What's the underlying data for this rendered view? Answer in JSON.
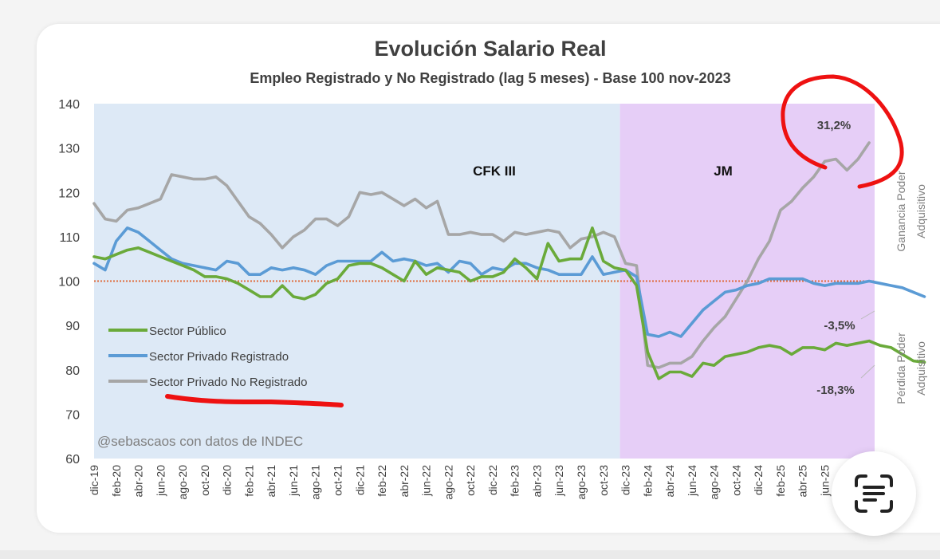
{
  "chart_data": {
    "type": "line",
    "title": "Evolución Salario Real",
    "subtitle": "Empleo Registrado y No Registrado (lag 5 meses) - Base 100 nov-2023",
    "ylim": [
      60,
      140
    ],
    "yticks": [
      60,
      70,
      80,
      90,
      100,
      110,
      120,
      130,
      140
    ],
    "reference_line": 100,
    "grid": false,
    "legend_position": "bottom-left",
    "x_tick_labels": [
      "dic-19",
      "feb-20",
      "abr-20",
      "jun-20",
      "ago-20",
      "oct-20",
      "dic-20",
      "feb-21",
      "abr-21",
      "jun-21",
      "ago-21",
      "oct-21",
      "dic-21",
      "feb-22",
      "abr-22",
      "jun-22",
      "ago-22",
      "oct-22",
      "dic-22",
      "feb-23",
      "abr-23",
      "jun-23",
      "ago-23",
      "oct-23",
      "dic-23",
      "feb-24",
      "abr-24",
      "jun-24",
      "ago-24",
      "oct-24",
      "dic-24",
      "feb-25",
      "abr-25",
      "jun-25",
      "ago-25",
      "oct-25"
    ],
    "periods": [
      {
        "label": "CFK III",
        "from": "dic-19",
        "to": "nov-23",
        "color": "#dde9f6"
      },
      {
        "label": "JM",
        "from": "dic-23",
        "to": "oct-25",
        "color": "#e6cef7"
      }
    ],
    "series": [
      {
        "name": "Sector Público",
        "color": "#6aaa3a",
        "values": [
          105.5,
          105,
          106,
          107,
          107.5,
          106.5,
          105.5,
          104.5,
          103.5,
          102.5,
          101,
          101,
          100.5,
          99.5,
          98,
          96.5,
          96.5,
          99,
          96.5,
          96,
          97,
          99.5,
          100.5,
          103.5,
          104,
          104,
          103,
          101.5,
          100,
          104.5,
          101.5,
          103,
          102.5,
          102,
          100,
          101,
          101,
          102,
          105,
          103,
          100.5,
          108.5,
          104.5,
          105,
          105,
          112,
          104.5,
          103,
          102.5,
          99,
          84,
          78,
          79.5,
          79.5,
          78.5,
          81.5,
          81,
          83,
          83.5,
          84,
          85,
          85.5,
          85,
          83.5,
          85,
          85,
          84.5,
          86,
          85.5,
          86,
          86.5,
          85.5,
          85,
          83.5,
          82,
          81.7
        ]
      },
      {
        "name": "Sector Privado Registrado",
        "color": "#5b9bd5",
        "values": [
          104,
          102.5,
          109,
          112,
          111,
          109,
          107,
          105,
          104,
          103.5,
          103,
          102.5,
          104.5,
          104,
          101.5,
          101.5,
          103,
          102.5,
          103,
          102.5,
          101.5,
          103.5,
          104.5,
          104.5,
          104.5,
          104.5,
          106.5,
          104.5,
          105,
          104.5,
          103.5,
          104,
          102,
          104.5,
          104,
          101.5,
          103,
          102.5,
          104,
          104,
          103,
          102.5,
          101.5,
          101.5,
          101.5,
          105.5,
          101.5,
          102,
          102.5,
          101,
          88,
          87.5,
          88.5,
          87.5,
          90.5,
          93.5,
          95.5,
          97.5,
          98,
          99,
          99.5,
          100.5,
          100.5,
          100.5,
          100.5,
          99.5,
          99,
          99.5,
          99.5,
          99.5,
          100,
          99.5,
          99,
          98.5,
          97.5,
          96.5
        ]
      },
      {
        "name": "Sector Privado No Registrado",
        "color": "#a6a6a6",
        "values": [
          117.5,
          114,
          113.5,
          116,
          116.5,
          117.5,
          118.5,
          124,
          123.5,
          123,
          123,
          123.5,
          121.5,
          118,
          114.5,
          113,
          110.5,
          107.5,
          110,
          111.5,
          114,
          114,
          112.5,
          114.5,
          120,
          119.5,
          120,
          118.5,
          117,
          118.5,
          116.5,
          118,
          110.5,
          110.5,
          111,
          110.5,
          110.5,
          109,
          111,
          110.5,
          111,
          111.5,
          111,
          107.5,
          109.5,
          110,
          111,
          110,
          104,
          103.5,
          81,
          80.5,
          81.5,
          81.5,
          83,
          86.5,
          89.5,
          92,
          96,
          100,
          105,
          109,
          116,
          118,
          121,
          123.5,
          127,
          127.5,
          125,
          127.5,
          131.2
        ]
      }
    ],
    "annotations": [
      "31,2%",
      "-3,5%",
      "-18,3%"
    ],
    "side_labels": {
      "top": [
        "Ganancia Poder",
        "Adquisitivo"
      ],
      "bottom": [
        "Pérdida Poder",
        "Adquisitivo"
      ]
    },
    "credit": "@sebascaos con datos de INDEC"
  },
  "colors": {
    "reference_line": "#e06a3a",
    "marker": "#ee1111",
    "axis_text": "#404040"
  },
  "lens_button": {
    "icon": "text-scan-icon"
  }
}
